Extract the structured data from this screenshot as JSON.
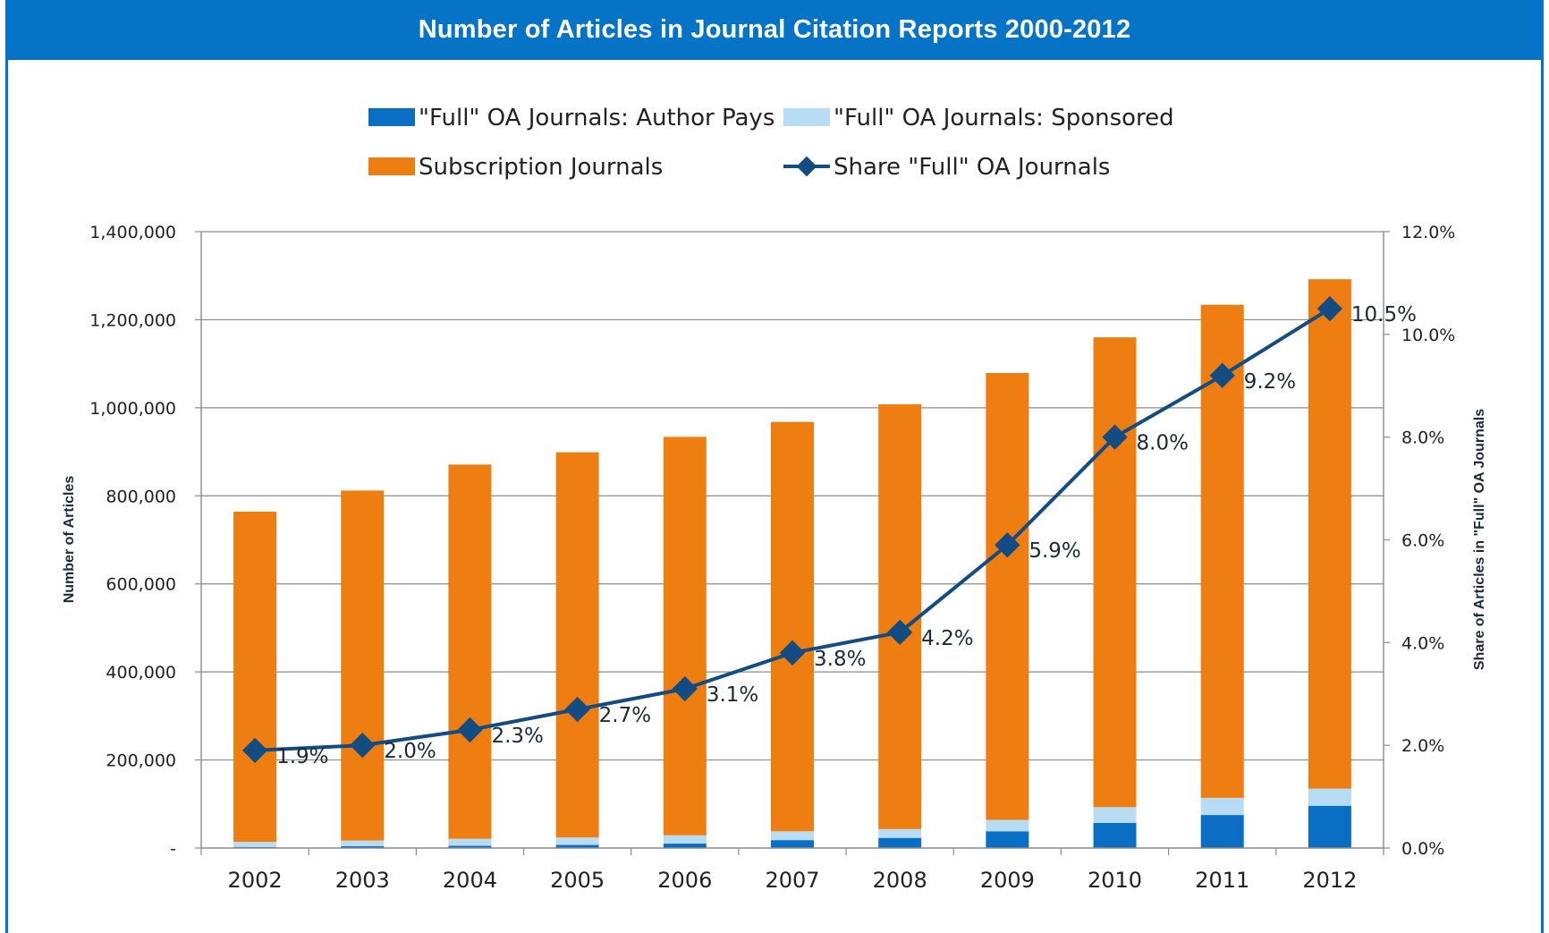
{
  "title": "Number of Articles in Journal Citation Reports 2000-2012",
  "colors": {
    "header": "#0573c6",
    "author_pays": "#0a6fc4",
    "sponsored": "#b7dcf3",
    "subscription": "#ee7d12",
    "share_line": "#134c82"
  },
  "chart_data": {
    "type": "bar",
    "stacked": true,
    "categories": [
      "2002",
      "2003",
      "2004",
      "2005",
      "2006",
      "2007",
      "2008",
      "2009",
      "2010",
      "2011",
      "2012"
    ],
    "series": [
      {
        "name": "\"Full\" OA Journals: Author Pays",
        "values": [
          2000,
          4000,
          5000,
          7000,
          10000,
          18000,
          23000,
          38000,
          57000,
          75000,
          96000
        ]
      },
      {
        "name": "\"Full\" OA Journals: Sponsored",
        "values": [
          12000,
          13000,
          16000,
          17000,
          19000,
          20000,
          20000,
          26000,
          36000,
          39000,
          39000
        ]
      },
      {
        "name": "Subscription Journals",
        "values": [
          750000,
          795000,
          850000,
          875000,
          905000,
          930000,
          965000,
          1015000,
          1067000,
          1120000,
          1157000
        ]
      }
    ],
    "line_series": {
      "name": "Share \"Full\" OA Journals",
      "values": [
        1.9,
        2.0,
        2.3,
        2.7,
        3.1,
        3.8,
        4.2,
        5.9,
        8.0,
        9.2,
        10.5
      ],
      "labels": [
        "1.9%",
        "2.0%",
        "2.3%",
        "2.7%",
        "3.1%",
        "3.8%",
        "4.2%",
        "5.9%",
        "8.0%",
        "9.2%",
        "10.5%"
      ]
    },
    "ylabel": "Number of Articles",
    "y2label": "Share of Articles in \"Full\" OA Journals",
    "ylim": [
      0,
      1400000
    ],
    "y2lim": [
      0,
      12
    ],
    "yticks": [
      "-",
      "200,000",
      "400,000",
      "600,000",
      "800,000",
      "1,000,000",
      "1,200,000",
      "1,400,000"
    ],
    "y2ticks": [
      "0.0%",
      "2.0%",
      "4.0%",
      "6.0%",
      "8.0%",
      "10.0%",
      "12.0%"
    ],
    "grid": true,
    "legend_position": "top"
  }
}
